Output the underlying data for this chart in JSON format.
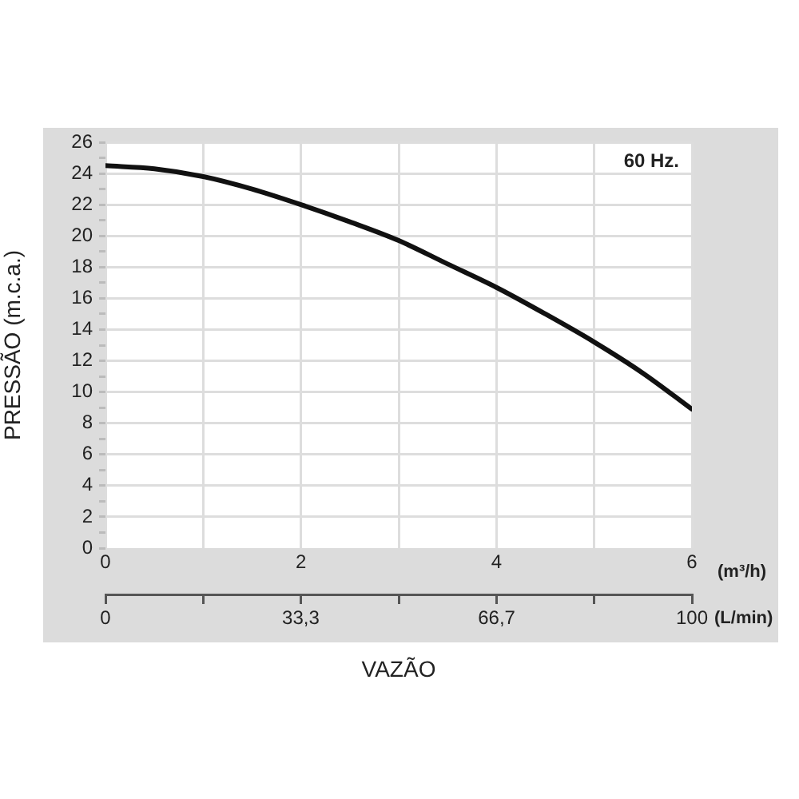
{
  "chart_data": {
    "type": "line",
    "xlabel": "VAZÃO",
    "ylabel": "PRESSÃO (m.c.a.)",
    "annotations": [
      "60 Hz.",
      "(m³/h)",
      "(L/min)"
    ],
    "x": [
      0,
      0.5,
      1,
      1.5,
      2,
      2.5,
      3,
      3.5,
      4,
      4.5,
      5,
      5.5,
      6
    ],
    "series": [
      {
        "color": "#111111",
        "values": [
          24.5,
          24.3,
          23.8,
          23.0,
          22.0,
          20.9,
          19.7,
          18.2,
          16.7,
          15.0,
          13.2,
          11.2,
          8.9
        ]
      }
    ],
    "xlim": [
      0,
      6
    ],
    "xticks": [
      0,
      {
        "value": 1,
        "label": null
      },
      2,
      {
        "value": 3,
        "label": null
      },
      4,
      {
        "value": 5,
        "label": null
      },
      6
    ],
    "x2lim": [
      0,
      100
    ],
    "x2ticks": [
      0,
      {
        "value": 16.7,
        "label": null
      },
      {
        "value": 33.3,
        "label": "33,3"
      },
      {
        "value": 50,
        "label": null
      },
      {
        "value": 66.7,
        "label": "66,7"
      },
      {
        "value": 83.3,
        "label": null
      },
      100
    ],
    "ylim": [
      0,
      26
    ],
    "yticks": [
      0,
      {
        "value": 1,
        "label": null
      },
      2,
      {
        "value": 3,
        "label": null
      },
      4,
      {
        "value": 5,
        "label": null
      },
      6,
      {
        "value": 7,
        "label": null
      },
      8,
      {
        "value": 9,
        "label": null
      },
      10,
      {
        "value": 11,
        "label": null
      },
      12,
      {
        "value": 13,
        "label": null
      },
      14,
      {
        "value": 15,
        "label": null
      },
      16,
      {
        "value": 17,
        "label": null
      },
      18,
      {
        "value": 19,
        "label": null
      },
      20,
      {
        "value": 21,
        "label": null
      },
      22,
      {
        "value": 23,
        "label": null
      },
      24,
      {
        "value": 25,
        "label": null
      },
      26
    ],
    "grid": true,
    "legend": false,
    "marker": "none",
    "line_style": "solid"
  }
}
